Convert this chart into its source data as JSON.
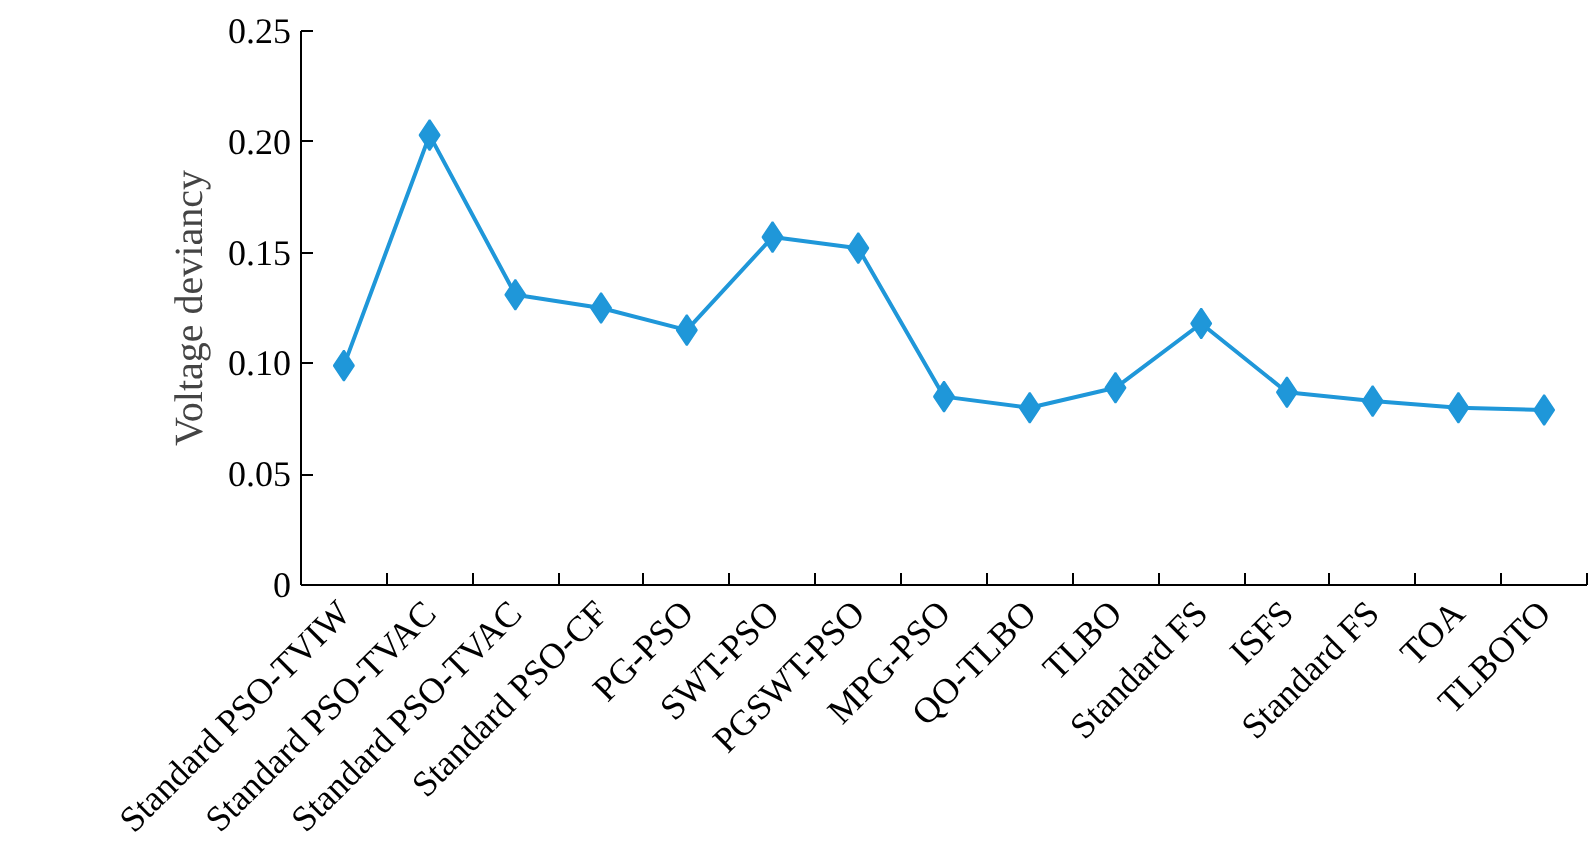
{
  "chart_data": {
    "type": "line",
    "ylabel": "Voltage deviancy",
    "categories": [
      "Standard PSO-TVIW",
      "Standard PSO-TVAC",
      "Standard PSO-TVAC",
      "Standard PSO-CF",
      "PG-PSO",
      "SWT-PSO",
      "PGSWT-PSO",
      "MPG-PSO",
      "QO-TLBO",
      "TLBO",
      "Standard FS",
      "ISFS",
      "Standard FS",
      "TOA",
      "TLBOTO"
    ],
    "series": [
      {
        "color": "#1f97d9",
        "values": [
          0.099,
          0.203,
          0.131,
          0.125,
          0.115,
          0.157,
          0.152,
          0.085,
          0.08,
          0.089,
          0.118,
          0.087,
          0.083,
          0.08,
          0.079
        ]
      }
    ],
    "ylim": [
      0,
      0.25
    ],
    "yticks": [
      0,
      0.05,
      {
        "value": 0.1,
        "label": "0.10"
      },
      0.15,
      {
        "value": 0.2,
        "label": "0.20"
      },
      0.25
    ],
    "marker": "diamond",
    "line_style": "solid",
    "grid": false
  }
}
